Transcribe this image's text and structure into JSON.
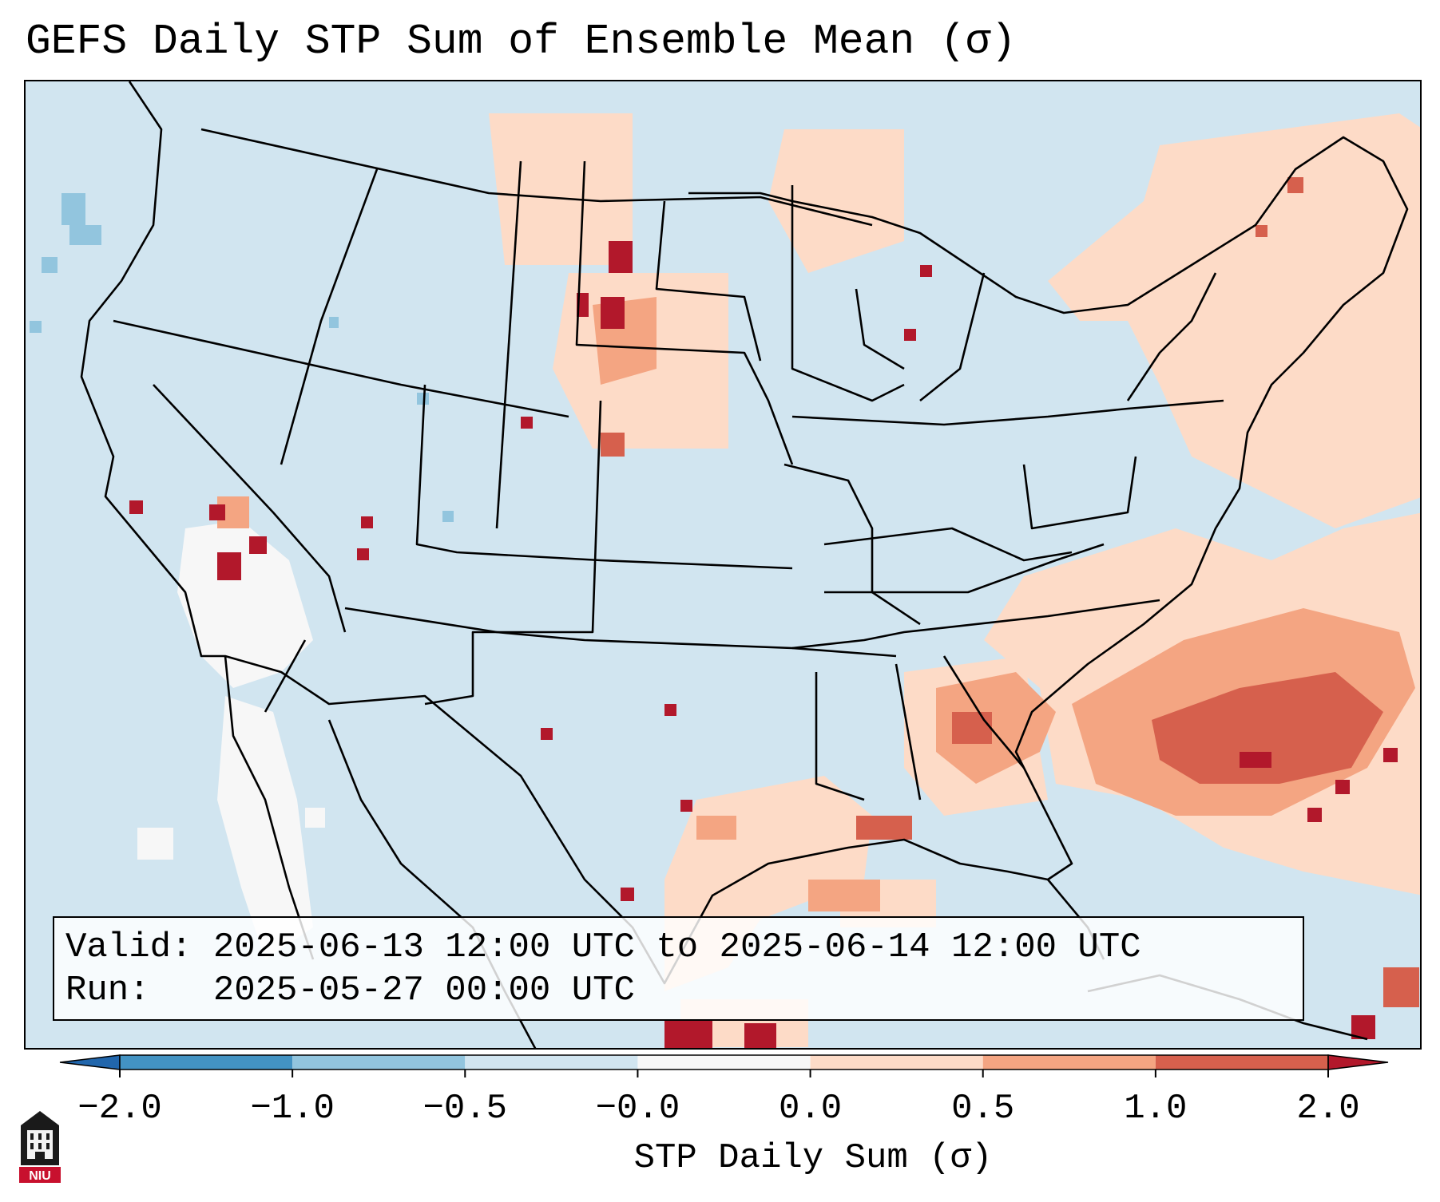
{
  "title": "GEFS Daily STP Sum of Ensemble Mean (σ)",
  "info": {
    "valid_label": "Valid:",
    "valid_value": "2025-06-13 12:00 UTC to 2025-06-14 12:00 UTC",
    "run_label": "Run:",
    "run_value": "2025-05-27 00:00 UTC"
  },
  "colorbar": {
    "label": "STP Daily Sum (σ)",
    "ticks": [
      "−2.0",
      "−1.0",
      "−0.5",
      "−0.0",
      "0.0",
      "0.5",
      "1.0",
      "2.0"
    ],
    "bins": [
      {
        "range": "< -2.0",
        "color": "#2166ac"
      },
      {
        "range": "-2.0 to -1.0",
        "color": "#4393c3"
      },
      {
        "range": "-1.0 to -0.5",
        "color": "#92c5de"
      },
      {
        "range": "-0.5 to -0.0",
        "color": "#d1e5f0"
      },
      {
        "range": "-0.0 to 0.0",
        "color": "#f7f7f7"
      },
      {
        "range": "0.0 to 0.5",
        "color": "#fddbc7"
      },
      {
        "range": "0.5 to 1.0",
        "color": "#f4a582"
      },
      {
        "range": "1.0 to 2.0",
        "color": "#d6604d"
      },
      {
        "range": "> 2.0",
        "color": "#b2182b"
      }
    ]
  },
  "logo": {
    "text": "NIU",
    "color": "#c8102e"
  },
  "map": {
    "region": "Contiguous United States, northern Mexico, Gulf of Mexico and western Atlantic",
    "background_color": "#d1e5f0",
    "highlight_areas": [
      {
        "name": "western-atlantic-core",
        "level": "1.0 to 2.0"
      },
      {
        "name": "southeast-us",
        "level": "0.5 to 1.0"
      },
      {
        "name": "north-dakota-montana",
        "level": "0.5 to 2.0"
      },
      {
        "name": "nevada",
        "level": "1.0 to 2.0"
      },
      {
        "name": "gulf-coast",
        "level": "0.0 to 1.0"
      },
      {
        "name": "new-england-quebec",
        "level": "0.0 to 1.0"
      }
    ]
  }
}
